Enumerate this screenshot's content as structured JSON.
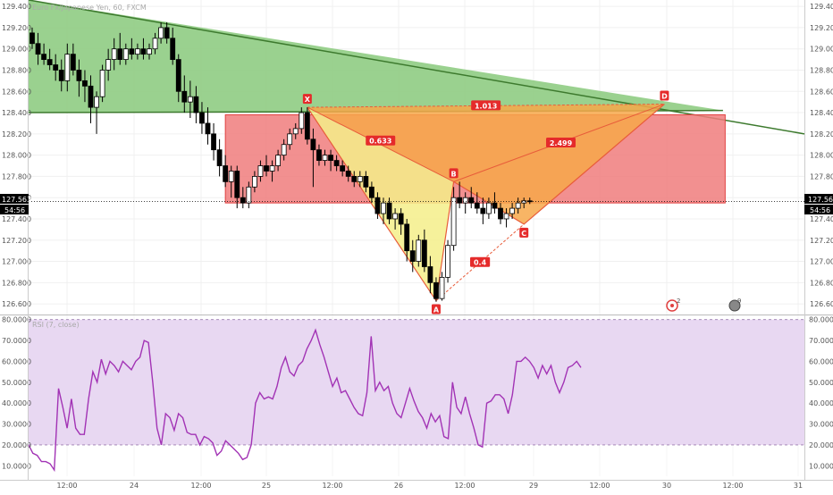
{
  "colors": {
    "up_candle": "#ffffff",
    "down_candle": "#000000",
    "candle_wick": "#000000",
    "green_zone": "#8fcc83",
    "green_line": "#3d7a2e",
    "red_zone": "#f07c7c",
    "red_border": "#e04040",
    "harmonic_upper": "#f7a84a",
    "harmonic_lower": "#f5ee8a",
    "harmonic_line": "#e85c3a",
    "label_bg": "#e52b2b",
    "rsi_line": "#a233b5",
    "rsi_band": "#e8d8f2",
    "price_tag": "#000000"
  },
  "header": {
    "title": "Euro Fx/Japanese Yen, 60, FXCM"
  },
  "price_tag": {
    "value": "127.563",
    "countdown": "54:56"
  },
  "rsi_pane": {
    "title": "RSI (7, close)"
  },
  "badges": [
    {
      "icon": "target-icon",
      "count": "2"
    },
    {
      "icon": "flame-icon",
      "count": "9"
    }
  ],
  "chart_data": [
    {
      "type": "candlestick",
      "y_ticks": [
        "129.400",
        "129.200",
        "129.000",
        "128.800",
        "128.600",
        "128.400",
        "128.200",
        "128.000",
        "127.800",
        "127.600",
        "127.400",
        "127.200",
        "127.000",
        "126.800",
        "126.600"
      ],
      "x_ticks": [
        "12:00",
        "24",
        "12:00",
        "25",
        "12:00",
        "26",
        "12:00",
        "29",
        "12:00",
        "30",
        "12:00",
        "31"
      ],
      "ylim": [
        126.5,
        129.46
      ],
      "candles": [
        [
          129.15,
          129.2,
          129.0,
          129.05
        ],
        [
          129.05,
          129.15,
          128.85,
          128.95
        ],
        [
          128.95,
          129.05,
          128.85,
          128.9
        ],
        [
          128.9,
          129.0,
          128.8,
          128.85
        ],
        [
          128.85,
          128.95,
          128.7,
          128.8
        ],
        [
          128.8,
          128.9,
          128.6,
          128.7
        ],
        [
          128.7,
          129.05,
          128.6,
          128.95
        ],
        [
          128.95,
          129.05,
          128.75,
          128.8
        ],
        [
          128.8,
          128.9,
          128.55,
          128.7
        ],
        [
          128.7,
          128.8,
          128.5,
          128.65
        ],
        [
          128.65,
          128.75,
          128.3,
          128.45
        ],
        [
          128.45,
          128.6,
          128.2,
          128.55
        ],
        [
          128.55,
          128.85,
          128.5,
          128.8
        ],
        [
          128.8,
          129.0,
          128.7,
          128.9
        ],
        [
          128.9,
          129.1,
          128.8,
          129.0
        ],
        [
          129.0,
          129.15,
          128.85,
          128.9
        ],
        [
          128.9,
          129.05,
          128.85,
          129.0
        ],
        [
          129.0,
          129.1,
          128.9,
          128.95
        ],
        [
          128.95,
          129.05,
          128.9,
          129.0
        ],
        [
          129.0,
          129.1,
          128.9,
          128.95
        ],
        [
          128.95,
          129.05,
          128.9,
          129.0
        ],
        [
          129.0,
          129.15,
          128.95,
          129.1
        ],
        [
          129.1,
          129.25,
          129.05,
          129.2
        ],
        [
          129.2,
          129.25,
          129.05,
          129.1
        ],
        [
          129.1,
          129.2,
          128.85,
          128.9
        ],
        [
          128.9,
          128.95,
          128.5,
          128.6
        ],
        [
          128.6,
          128.75,
          128.4,
          128.5
        ],
        [
          128.5,
          128.7,
          128.35,
          128.55
        ],
        [
          128.55,
          128.65,
          128.3,
          128.4
        ],
        [
          128.4,
          128.5,
          128.2,
          128.3
        ],
        [
          128.3,
          128.45,
          128.1,
          128.2
        ],
        [
          128.2,
          128.3,
          127.95,
          128.05
        ],
        [
          128.05,
          128.15,
          127.8,
          127.9
        ],
        [
          127.9,
          128.0,
          127.7,
          127.75
        ],
        [
          127.75,
          127.9,
          127.6,
          127.85
        ],
        [
          127.85,
          127.9,
          127.5,
          127.6
        ],
        [
          127.6,
          127.7,
          127.5,
          127.55
        ],
        [
          127.55,
          127.75,
          127.5,
          127.7
        ],
        [
          127.7,
          127.85,
          127.65,
          127.8
        ],
        [
          127.8,
          127.95,
          127.75,
          127.9
        ],
        [
          127.9,
          128.0,
          127.8,
          127.85
        ],
        [
          127.85,
          127.95,
          127.75,
          127.9
        ],
        [
          127.9,
          128.05,
          127.85,
          128.0
        ],
        [
          128.0,
          128.15,
          127.95,
          128.1
        ],
        [
          128.1,
          128.25,
          128.05,
          128.2
        ],
        [
          128.2,
          128.3,
          128.15,
          128.25
        ],
        [
          128.25,
          128.45,
          128.2,
          128.4
        ],
        [
          128.4,
          128.45,
          128.1,
          128.15
        ],
        [
          128.15,
          128.25,
          127.7,
          128.05
        ],
        [
          128.05,
          128.1,
          127.9,
          127.95
        ],
        [
          127.95,
          128.05,
          127.9,
          128.0
        ],
        [
          128.0,
          128.05,
          127.85,
          127.95
        ],
        [
          127.95,
          128.0,
          127.85,
          127.9
        ],
        [
          127.9,
          127.95,
          127.8,
          127.85
        ],
        [
          127.85,
          127.9,
          127.75,
          127.8
        ],
        [
          127.8,
          127.85,
          127.7,
          127.75
        ],
        [
          127.75,
          127.85,
          127.7,
          127.8
        ],
        [
          127.8,
          127.85,
          127.65,
          127.7
        ],
        [
          127.7,
          127.75,
          127.55,
          127.6
        ],
        [
          127.6,
          127.65,
          127.4,
          127.45
        ],
        [
          127.45,
          127.6,
          127.35,
          127.55
        ],
        [
          127.55,
          127.6,
          127.35,
          127.4
        ],
        [
          127.4,
          127.5,
          127.3,
          127.45
        ],
        [
          127.45,
          127.5,
          127.25,
          127.35
        ],
        [
          127.35,
          127.4,
          127.0,
          127.1
        ],
        [
          127.1,
          127.2,
          126.9,
          127.0
        ],
        [
          127.0,
          127.25,
          126.95,
          127.2
        ],
        [
          127.2,
          127.3,
          126.9,
          126.95
        ],
        [
          126.95,
          127.05,
          126.7,
          126.8
        ],
        [
          126.8,
          126.85,
          126.62,
          126.65
        ],
        [
          126.65,
          126.9,
          126.63,
          126.85
        ],
        [
          126.85,
          127.2,
          126.8,
          127.15
        ],
        [
          127.15,
          127.7,
          127.1,
          127.6
        ],
        [
          127.6,
          127.75,
          127.5,
          127.55
        ],
        [
          127.55,
          127.65,
          127.45,
          127.6
        ],
        [
          127.6,
          127.7,
          127.5,
          127.55
        ],
        [
          127.55,
          127.65,
          127.45,
          127.5
        ],
        [
          127.5,
          127.6,
          127.35,
          127.45
        ],
        [
          127.45,
          127.6,
          127.4,
          127.55
        ],
        [
          127.55,
          127.65,
          127.45,
          127.5
        ],
        [
          127.5,
          127.55,
          127.35,
          127.4
        ],
        [
          127.4,
          127.5,
          127.32,
          127.45
        ],
        [
          127.45,
          127.55,
          127.4,
          127.5
        ],
        [
          127.5,
          127.6,
          127.45,
          127.55
        ],
        [
          127.55,
          127.6,
          127.5,
          127.57
        ],
        [
          127.57,
          127.6,
          127.54,
          127.563
        ]
      ],
      "drawings": {
        "harmonic_points": {
          "X": {
            "i": 47,
            "price": 128.45
          },
          "A": {
            "i": 69,
            "price": 126.63
          },
          "B": {
            "i": 72,
            "price": 127.75
          },
          "C": {
            "i": 84,
            "price": 127.35
          },
          "D": {
            "i": 108,
            "price": 128.48
          }
        },
        "ratios": {
          "XB": "0.633",
          "AC": "0.4",
          "BD": "2.499",
          "XD": "1.013"
        },
        "green_zone": {
          "p_left_top": 129.46,
          "p_right_top": 128.2,
          "p_right_bottom": 128.42,
          "p_left_bottom": 128.4,
          "i_right": 118
        },
        "red_zone": {
          "i_left": 33,
          "i_right": 97,
          "p_top": 128.38,
          "p_bottom": 127.55
        }
      }
    },
    {
      "type": "line",
      "name": "RSI (7, close)",
      "y_ticks": [
        "80.0000",
        "70.0000",
        "60.0000",
        "50.0000",
        "40.0000",
        "30.0000",
        "20.0000",
        "10.0000"
      ],
      "ylim": [
        5,
        82
      ],
      "band": [
        20,
        80
      ],
      "values": [
        20,
        16,
        15,
        12,
        12,
        11,
        8,
        47,
        38,
        28,
        42,
        28,
        25,
        25,
        42,
        55,
        50,
        61,
        54,
        60,
        58,
        55,
        60,
        58,
        56,
        60,
        62,
        70,
        69,
        50,
        28,
        20,
        35,
        33,
        27,
        35,
        33,
        26,
        25,
        25,
        20,
        24,
        23,
        21,
        15,
        17,
        22,
        20,
        18,
        16,
        13,
        14,
        20,
        40,
        45,
        42,
        43,
        42,
        48,
        57,
        62,
        55,
        53,
        58,
        60,
        66,
        70,
        75,
        68,
        62,
        55,
        48,
        52,
        45,
        46,
        42,
        38,
        35,
        34,
        45,
        72,
        46,
        50,
        46,
        48,
        40,
        35,
        33,
        40,
        47,
        41,
        36,
        33,
        28,
        35,
        31,
        34,
        24,
        23,
        50,
        38,
        35,
        43,
        35,
        28,
        20,
        19,
        40,
        41,
        44,
        44,
        42,
        35,
        44,
        60,
        60,
        62,
        60,
        57,
        52,
        58,
        54,
        58,
        50,
        45,
        50,
        57,
        58,
        60,
        57
      ]
    }
  ]
}
